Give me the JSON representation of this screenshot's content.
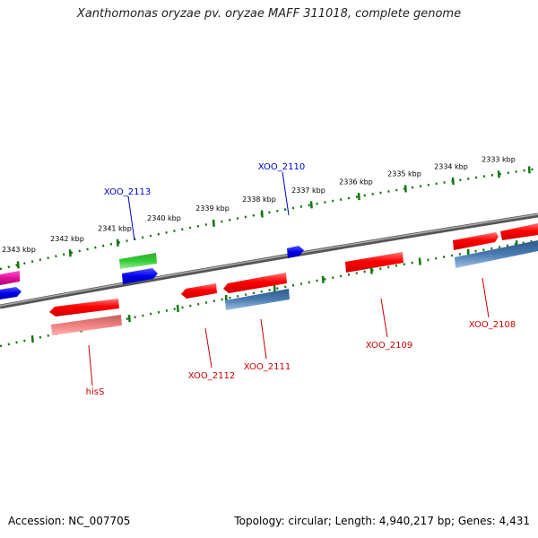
{
  "title": "Xanthomonas oryzae pv. oryzae MAFF 311018, complete genome",
  "footer": {
    "accession": "Accession: NC_007705",
    "summary": "Topology: circular; Length: 4,940,217 bp; Genes: 4,431"
  },
  "scale_labels": [
    "2343 kbp",
    "2342 kbp",
    "2341 kbp",
    "2340 kbp",
    "2339 kbp",
    "2338 kbp",
    "2337 kbp",
    "2336 kbp",
    "2335 kbp",
    "2334 kbp",
    "2333 kbp"
  ],
  "gene_labels": [
    {
      "text": "XOO_2113",
      "color": "#0000cc"
    },
    {
      "text": "XOO_2110",
      "color": "#0000cc"
    },
    {
      "text": "hisS",
      "color": "#cc0000"
    },
    {
      "text": "XOO_2112",
      "color": "#cc0000"
    },
    {
      "text": "XOO_2111",
      "color": "#cc0000"
    },
    {
      "text": "XOO_2109",
      "color": "#cc0000"
    },
    {
      "text": "XOO_2108",
      "color": "#cc0000"
    }
  ],
  "colors": {
    "red": "#ee0000",
    "pink_red": "#e87a7a",
    "steel_blue": "#4a7bb0",
    "blue": "#0000ee",
    "green": "#22bb22",
    "magenta": "#e0119a",
    "backbone": "#7a7a7a",
    "scale_green": "#117711"
  }
}
